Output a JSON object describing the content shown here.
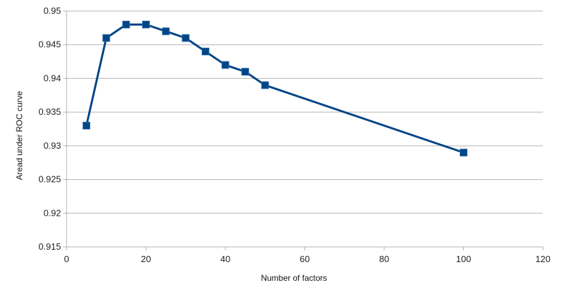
{
  "chart_data": {
    "type": "line",
    "xlabel": "Number of factors",
    "ylabel": "Aread under ROC curve",
    "xlim": [
      0,
      120
    ],
    "ylim": [
      0.915,
      0.95
    ],
    "xticks": [
      0,
      20,
      40,
      60,
      80,
      100,
      120
    ],
    "yticks": [
      0.915,
      0.92,
      0.925,
      0.93,
      0.935,
      0.94,
      0.945,
      0.95
    ],
    "ytick_labels": [
      "0.915",
      "0.92",
      "0.925",
      "0.93",
      "0.935",
      "0.94",
      "0.945",
      "0.95"
    ],
    "grid": "horizontal",
    "legend": "none",
    "series": [
      {
        "color": "#004586",
        "marker": "square",
        "x": [
          5,
          10,
          15,
          20,
          25,
          30,
          35,
          40,
          45,
          50,
          100
        ],
        "y": [
          0.933,
          0.946,
          0.948,
          0.948,
          0.947,
          0.946,
          0.944,
          0.942,
          0.941,
          0.939,
          0.929
        ]
      }
    ]
  }
}
